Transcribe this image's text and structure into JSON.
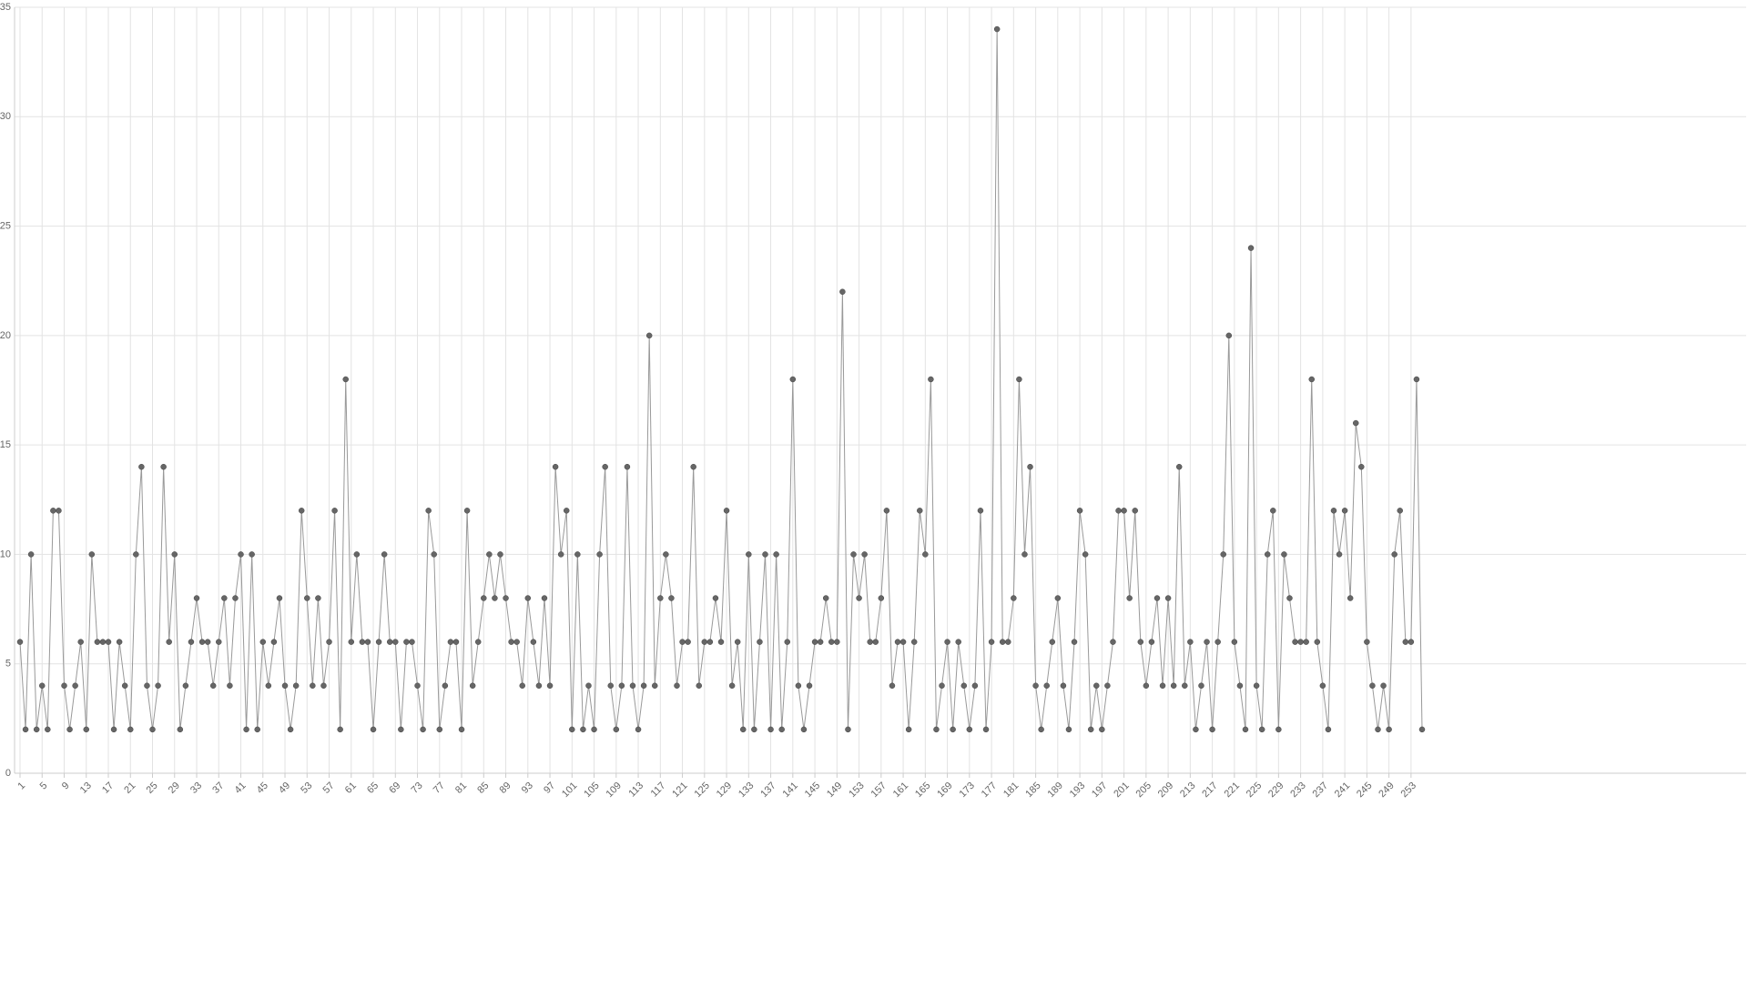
{
  "chart_data": {
    "type": "line",
    "categories": [
      "1",
      null,
      null,
      null,
      "5",
      null,
      null,
      null,
      "9",
      null,
      null,
      null,
      "13",
      null,
      null,
      null,
      "17",
      null,
      null,
      null,
      "21",
      null,
      null,
      null,
      "25",
      null,
      null,
      null,
      "29",
      null,
      null,
      null,
      "33",
      null,
      null,
      null,
      "37",
      null,
      null,
      null,
      "41",
      null,
      null,
      null,
      "45",
      null,
      null,
      null,
      "49",
      null,
      null,
      null,
      "53",
      null,
      null,
      null,
      "57",
      null,
      null,
      null,
      "61",
      null,
      null,
      null,
      "65",
      null,
      null,
      null,
      "69",
      null,
      null,
      null,
      "73",
      null,
      null,
      null,
      "77",
      null,
      null,
      null,
      "81",
      null,
      null,
      null,
      "85",
      null,
      null,
      null,
      "89",
      null,
      null,
      null,
      "93",
      null,
      null,
      null,
      "97",
      null,
      null,
      null,
      "101",
      null,
      null,
      null,
      "105",
      null,
      null,
      null,
      "109",
      null,
      null,
      null,
      "113",
      null,
      null,
      null,
      "117",
      null,
      null,
      null,
      "121",
      null,
      null,
      null,
      "125",
      null,
      null,
      null,
      "129",
      null,
      null,
      null,
      "133",
      null,
      null,
      null,
      "137",
      null,
      null,
      null,
      "141",
      null,
      null,
      null,
      "145",
      null,
      null,
      null,
      "149",
      null,
      null,
      null,
      "153",
      null,
      null,
      null,
      "157",
      null,
      null,
      null,
      "161",
      null,
      null,
      null,
      "165",
      null,
      null,
      null,
      "169",
      null,
      null,
      null,
      "173",
      null,
      null,
      null,
      "177",
      null,
      null,
      null,
      "181",
      null,
      null,
      null,
      "185",
      null,
      null,
      null,
      "189",
      null,
      null,
      null,
      "193",
      null,
      null,
      null,
      "197",
      null,
      null,
      null,
      "201",
      null,
      null,
      null,
      "205",
      null,
      null,
      null,
      "209",
      null,
      null,
      null,
      "213",
      null,
      null,
      null,
      "217",
      null,
      null,
      null,
      "221",
      null,
      null,
      null,
      "225",
      null,
      null,
      null,
      "229",
      null,
      null,
      null,
      "233",
      null,
      null,
      null,
      "237",
      null,
      null,
      null,
      "241",
      null,
      null,
      null,
      "245",
      null,
      null,
      null,
      "249",
      null,
      null,
      null,
      "253",
      null,
      null
    ],
    "values": [
      6,
      2,
      10,
      2,
      4,
      2,
      12,
      12,
      4,
      2,
      4,
      6,
      2,
      10,
      6,
      6,
      6,
      2,
      6,
      4,
      2,
      10,
      14,
      4,
      2,
      4,
      14,
      6,
      10,
      2,
      4,
      6,
      8,
      6,
      6,
      4,
      6,
      8,
      4,
      8,
      10,
      2,
      10,
      2,
      6,
      4,
      6,
      8,
      4,
      2,
      4,
      12,
      8,
      4,
      8,
      4,
      6,
      12,
      2,
      18,
      6,
      10,
      6,
      6,
      2,
      6,
      10,
      6,
      6,
      2,
      6,
      6,
      4,
      2,
      12,
      10,
      2,
      4,
      6,
      6,
      2,
      12,
      4,
      6,
      8,
      10,
      8,
      10,
      8,
      6,
      6,
      4,
      8,
      6,
      4,
      8,
      4,
      14,
      10,
      12,
      2,
      10,
      2,
      4,
      2,
      10,
      14,
      4,
      2,
      4,
      14,
      4,
      2,
      4,
      20,
      4,
      8,
      10,
      8,
      4,
      6,
      6,
      14,
      4,
      6,
      6,
      8,
      6,
      12,
      4,
      6,
      2,
      10,
      2,
      6,
      10,
      2,
      10,
      2,
      6,
      18,
      4,
      2,
      4,
      6,
      6,
      8,
      6,
      6,
      22,
      2,
      10,
      8,
      10,
      6,
      6,
      8,
      12,
      4,
      6,
      6,
      2,
      6,
      12,
      10,
      18,
      2,
      4,
      6,
      2,
      6,
      4,
      2,
      4,
      12,
      2,
      6,
      34,
      6,
      6,
      8,
      18,
      10,
      14,
      4,
      2,
      4,
      6,
      8,
      4,
      2,
      6,
      12,
      10,
      2,
      4,
      2,
      4,
      6,
      12,
      12,
      8,
      12,
      6,
      4,
      6,
      8,
      4,
      8,
      4,
      14,
      4,
      6,
      2,
      4,
      6,
      2,
      6,
      10,
      20,
      6,
      4,
      2,
      24,
      4,
      2,
      10,
      12,
      2,
      10,
      8,
      6,
      6,
      6,
      18,
      6,
      4,
      2,
      12,
      10,
      12,
      8,
      16,
      14,
      6,
      4,
      2,
      4,
      2,
      10,
      12,
      6,
      6,
      18,
      2
    ],
    "color": "#666666",
    "line_color": "#999999",
    "ylim": [
      0,
      35
    ],
    "yticks": [
      0,
      5,
      10,
      15,
      20,
      25,
      30,
      35
    ],
    "grid": true
  }
}
